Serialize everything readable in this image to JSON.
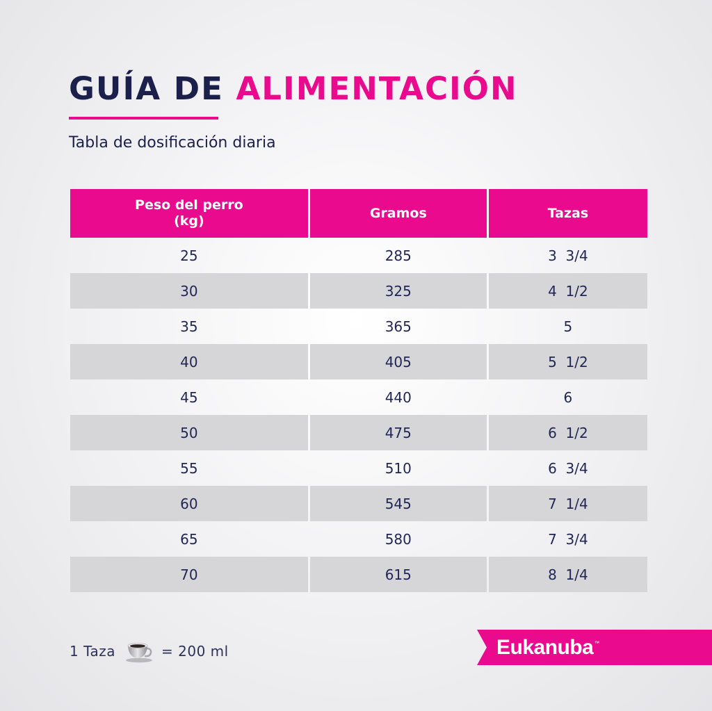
{
  "title": {
    "part1": "GUÍA DE",
    "part2": "ALIMENTACIÓN"
  },
  "subtitle": "Tabla de dosificación diaria",
  "table": {
    "headers": [
      "Peso del perro\n(kg)",
      "Gramos",
      "Tazas"
    ],
    "rows": [
      [
        "25",
        "285",
        "3  3/4"
      ],
      [
        "30",
        "325",
        "4  1/2"
      ],
      [
        "35",
        "365",
        "5"
      ],
      [
        "40",
        "405",
        "5  1/2"
      ],
      [
        "45",
        "440",
        "6"
      ],
      [
        "50",
        "475",
        "6  1/2"
      ],
      [
        "55",
        "510",
        "6  3/4"
      ],
      [
        "60",
        "545",
        "7  1/4"
      ],
      [
        "65",
        "580",
        "7  3/4"
      ],
      [
        "70",
        "615",
        "8  1/4"
      ]
    ]
  },
  "footer": {
    "cup_label": "1 Taza",
    "cup_icon": "coffee-cup-icon",
    "equals": "= 200 ml"
  },
  "brand": {
    "name": "Eukanuba",
    "tm": "™"
  },
  "colors": {
    "accent": "#ea0a8e",
    "navy": "#1b1f4b",
    "row_alt": "#d6d5d8"
  }
}
